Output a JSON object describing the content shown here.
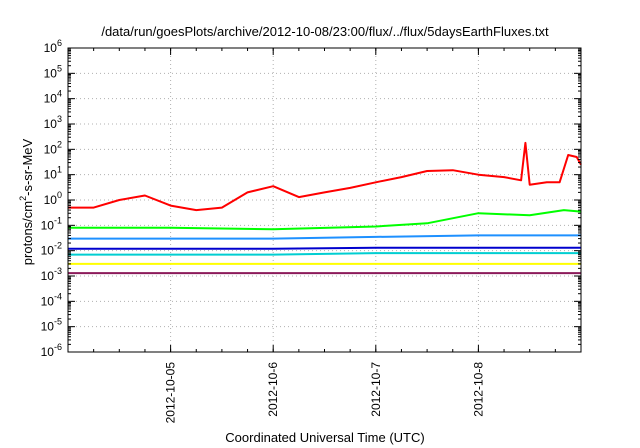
{
  "chart_data": {
    "type": "line",
    "title": "/data/run/goesPlots/archive/2012-10-08/23:00/flux/../flux/5daysEarthFluxes.txt",
    "xlabel": "Coordinated Universal Time (UTC)",
    "ylabel_prefix": "protons/cm",
    "ylabel_sup": "2",
    "ylabel_suffix": "-s-sr-MeV",
    "xlim": [
      "2012-10-04T00:00",
      "2012-10-09T00:00"
    ],
    "ylim": [
      1e-06,
      1000000.0
    ],
    "yscale": "log",
    "grid": true,
    "x_ticks": [
      "2012-10-05",
      "2012-10-6",
      "2012-10-7",
      "2012-10-8"
    ],
    "x_tick_dates": [
      "2012-10-05T00:00",
      "2012-10-06T00:00",
      "2012-10-07T00:00",
      "2012-10-08T00:00"
    ],
    "y_ticks": [
      {
        "base": "10",
        "exp": "6"
      },
      {
        "base": "10",
        "exp": "5"
      },
      {
        "base": "10",
        "exp": "4"
      },
      {
        "base": "10",
        "exp": "3"
      },
      {
        "base": "10",
        "exp": "2"
      },
      {
        "base": "10",
        "exp": "1"
      },
      {
        "base": "10",
        "exp": "0"
      },
      {
        "base": "10",
        "exp": "-1"
      },
      {
        "base": "10",
        "exp": "-2"
      },
      {
        "base": "10",
        "exp": "-3"
      },
      {
        "base": "10",
        "exp": "-4"
      },
      {
        "base": "10",
        "exp": "-5"
      },
      {
        "base": "10",
        "exp": "-6"
      }
    ],
    "y_tick_values": [
      1000000.0,
      100000.0,
      10000.0,
      1000.0,
      100.0,
      10.0,
      1.0,
      0.1,
      0.01,
      0.001,
      0.0001,
      1e-05,
      1e-06
    ],
    "series": [
      {
        "color": "#ff0000",
        "x": [
          "2012-10-04T00:00",
          "2012-10-04T06:00",
          "2012-10-04T12:00",
          "2012-10-04T18:00",
          "2012-10-05T00:00",
          "2012-10-05T06:00",
          "2012-10-05T12:00",
          "2012-10-05T18:00",
          "2012-10-06T00:00",
          "2012-10-06T06:00",
          "2012-10-06T12:00",
          "2012-10-06T18:00",
          "2012-10-07T00:00",
          "2012-10-07T06:00",
          "2012-10-07T12:00",
          "2012-10-07T18:00",
          "2012-10-08T00:00",
          "2012-10-08T06:00",
          "2012-10-08T10:00",
          "2012-10-08T11:00",
          "2012-10-08T12:00",
          "2012-10-08T16:00",
          "2012-10-08T19:00",
          "2012-10-08T21:00",
          "2012-10-08T23:00",
          "2012-10-09T00:00"
        ],
        "values": [
          0.5,
          0.5,
          1.0,
          1.5,
          0.6,
          0.4,
          0.5,
          2.0,
          3.5,
          1.3,
          2.0,
          3.0,
          5.0,
          8.0,
          14,
          15,
          10,
          8.0,
          6.0,
          180,
          4.0,
          5.0,
          5.0,
          60,
          50,
          25
        ]
      },
      {
        "color": "#00ff00",
        "x": [
          "2012-10-04T00:00",
          "2012-10-05T00:00",
          "2012-10-06T00:00",
          "2012-10-07T00:00",
          "2012-10-07T12:00",
          "2012-10-08T00:00",
          "2012-10-08T12:00",
          "2012-10-08T20:00",
          "2012-10-09T00:00"
        ],
        "values": [
          0.08,
          0.08,
          0.07,
          0.09,
          0.12,
          0.3,
          0.25,
          0.4,
          0.35
        ]
      },
      {
        "color": "#1e90ff",
        "x": [
          "2012-10-04T00:00",
          "2012-10-05T00:00",
          "2012-10-06T00:00",
          "2012-10-07T00:00",
          "2012-10-08T00:00",
          "2012-10-09T00:00"
        ],
        "values": [
          0.03,
          0.03,
          0.03,
          0.035,
          0.04,
          0.04
        ]
      },
      {
        "color": "#00ced1",
        "x": [
          "2012-10-04T00:00",
          "2012-10-05T00:00",
          "2012-10-06T00:00",
          "2012-10-07T00:00",
          "2012-10-08T00:00",
          "2012-10-09T00:00"
        ],
        "values": [
          0.007,
          0.007,
          0.007,
          0.008,
          0.008,
          0.008
        ]
      },
      {
        "color": "#0000cd",
        "x": [
          "2012-10-04T00:00",
          "2012-10-05T00:00",
          "2012-10-06T00:00",
          "2012-10-07T00:00",
          "2012-10-08T00:00",
          "2012-10-09T00:00"
        ],
        "values": [
          0.012,
          0.012,
          0.012,
          0.013,
          0.013,
          0.013
        ]
      },
      {
        "color": "#ffff00",
        "x": [
          "2012-10-04T00:00",
          "2012-10-05T00:00",
          "2012-10-06T00:00",
          "2012-10-07T00:00",
          "2012-10-08T00:00",
          "2012-10-09T00:00"
        ],
        "values": [
          0.003,
          0.003,
          0.003,
          0.003,
          0.003,
          0.003
        ]
      },
      {
        "color": "#8b1a5a",
        "x": [
          "2012-10-04T00:00",
          "2012-10-05T00:00",
          "2012-10-06T00:00",
          "2012-10-07T00:00",
          "2012-10-08T00:00",
          "2012-10-09T00:00"
        ],
        "values": [
          0.0013,
          0.0013,
          0.0013,
          0.0013,
          0.0013,
          0.0013
        ]
      }
    ]
  }
}
